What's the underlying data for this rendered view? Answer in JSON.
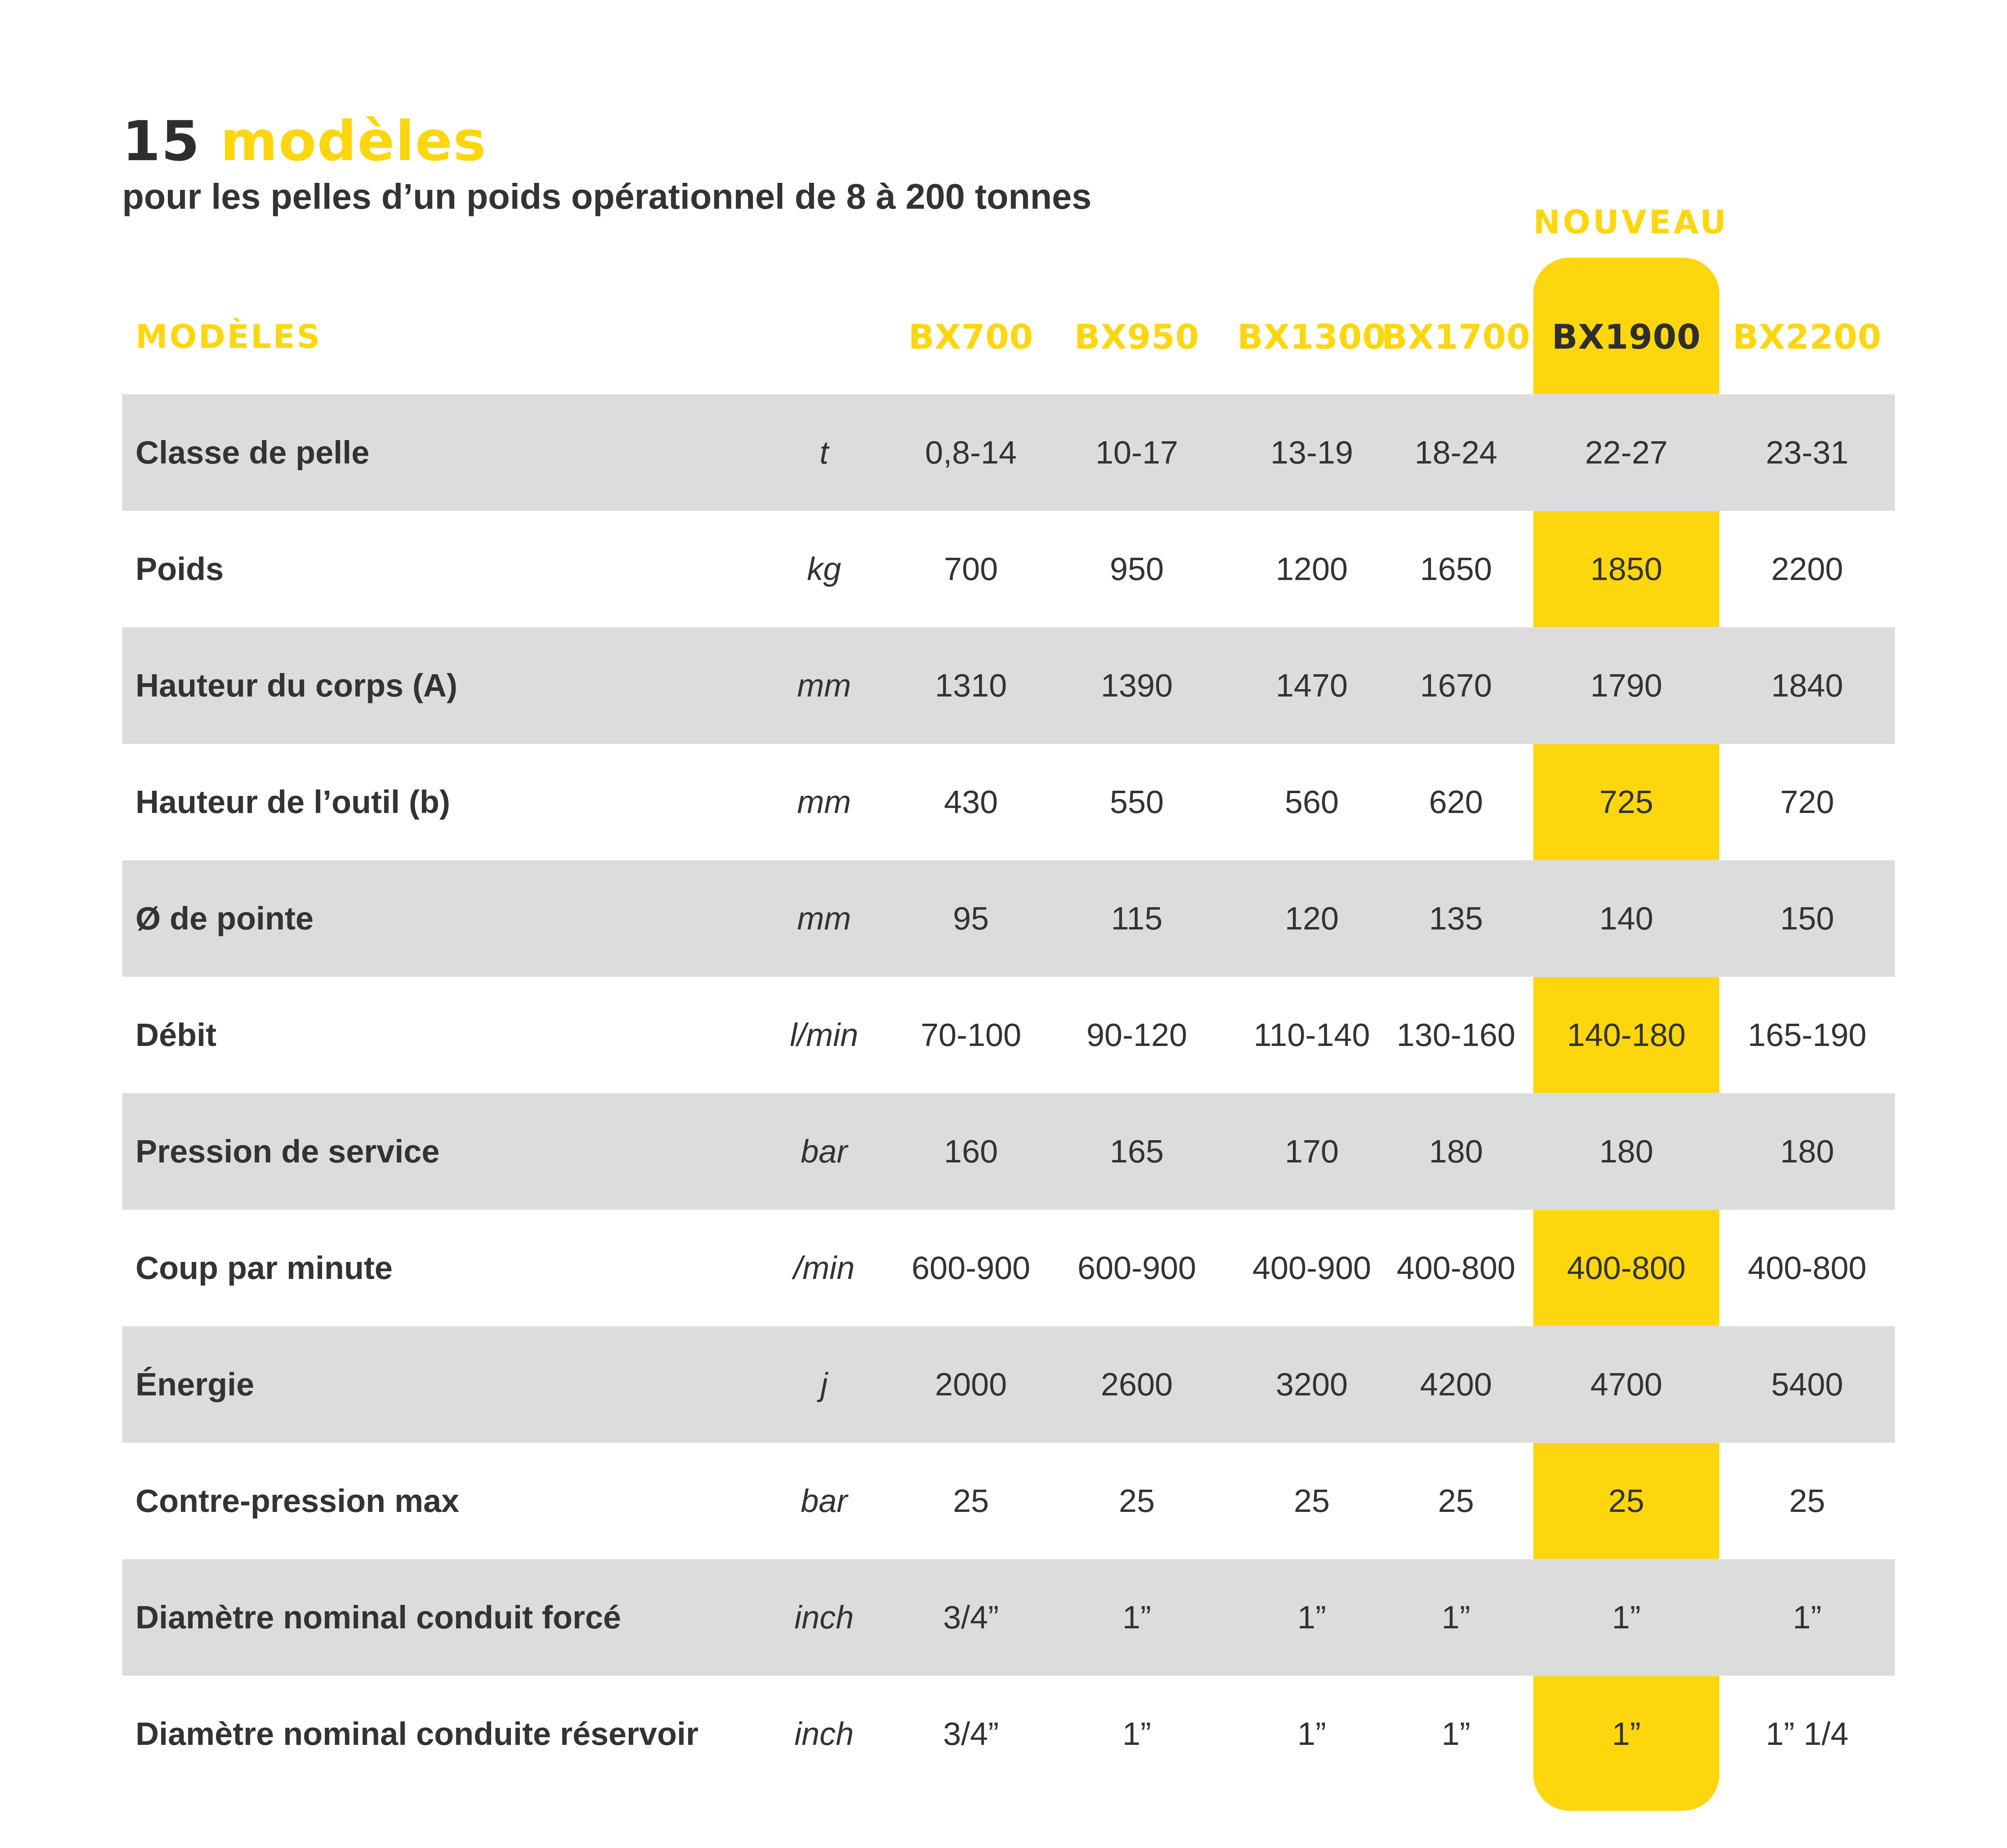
{
  "title": {
    "number": "15",
    "word": "modèles"
  },
  "subtitle": "pour les pelles d’un poids opérationnel de 8 à 200 tonnes",
  "new_label": "NOUVEAU",
  "colors": {
    "accent": "#fdd60e",
    "shade": "#dcdcdc",
    "text": "#333333"
  },
  "table": {
    "header_label": "MODÈLES",
    "models": [
      "BX700",
      "BX950",
      "BX1300",
      "BX1700",
      "BX1900",
      "BX2200"
    ],
    "rows": [
      {
        "label": "Classe de pelle",
        "unit": "t",
        "values": [
          "0,8-14",
          "10-17",
          "13-19",
          "18-24",
          "22-27",
          "23-31"
        ]
      },
      {
        "label": "Poids",
        "unit": "kg",
        "values": [
          "700",
          "950",
          "1200",
          "1650",
          "1850",
          "2200"
        ]
      },
      {
        "label": "Hauteur du corps (A)",
        "unit": "mm",
        "values": [
          "1310",
          "1390",
          "1470",
          "1670",
          "1790",
          "1840"
        ]
      },
      {
        "label": "Hauteur de l’outil (b)",
        "unit": "mm",
        "values": [
          "430",
          "550",
          "560",
          "620",
          "725",
          "720"
        ]
      },
      {
        "label": "Ø de pointe",
        "unit": "mm",
        "values": [
          "95",
          "115",
          "120",
          "135",
          "140",
          "150"
        ]
      },
      {
        "label": "Débit",
        "unit": "l/min",
        "values": [
          "70-100",
          "90-120",
          "110-140",
          "130-160",
          "140-180",
          "165-190"
        ]
      },
      {
        "label": "Pression de service",
        "unit": "bar",
        "values": [
          "160",
          "165",
          "170",
          "180",
          "180",
          "180"
        ]
      },
      {
        "label": "Coup par minute",
        "unit": "/min",
        "values": [
          "600-900",
          "600-900",
          "400-900",
          "400-800",
          "400-800",
          "400-800"
        ]
      },
      {
        "label": "Énergie",
        "unit": "j",
        "values": [
          "2000",
          "2600",
          "3200",
          "4200",
          "4700",
          "5400"
        ]
      },
      {
        "label": "Contre-pression max",
        "unit": "bar",
        "values": [
          "25",
          "25",
          "25",
          "25",
          "25",
          "25"
        ]
      },
      {
        "label": "Diamètre nominal conduit forcé",
        "unit": "inch",
        "values": [
          "3/4”",
          "1”",
          "1”",
          "1”",
          "1”",
          "1”"
        ]
      },
      {
        "label": "Diamètre nominal conduite réservoir",
        "unit": "inch",
        "values": [
          "3/4”",
          "1”",
          "1”",
          "1”",
          "1”",
          "1” 1/4"
        ]
      }
    ]
  }
}
